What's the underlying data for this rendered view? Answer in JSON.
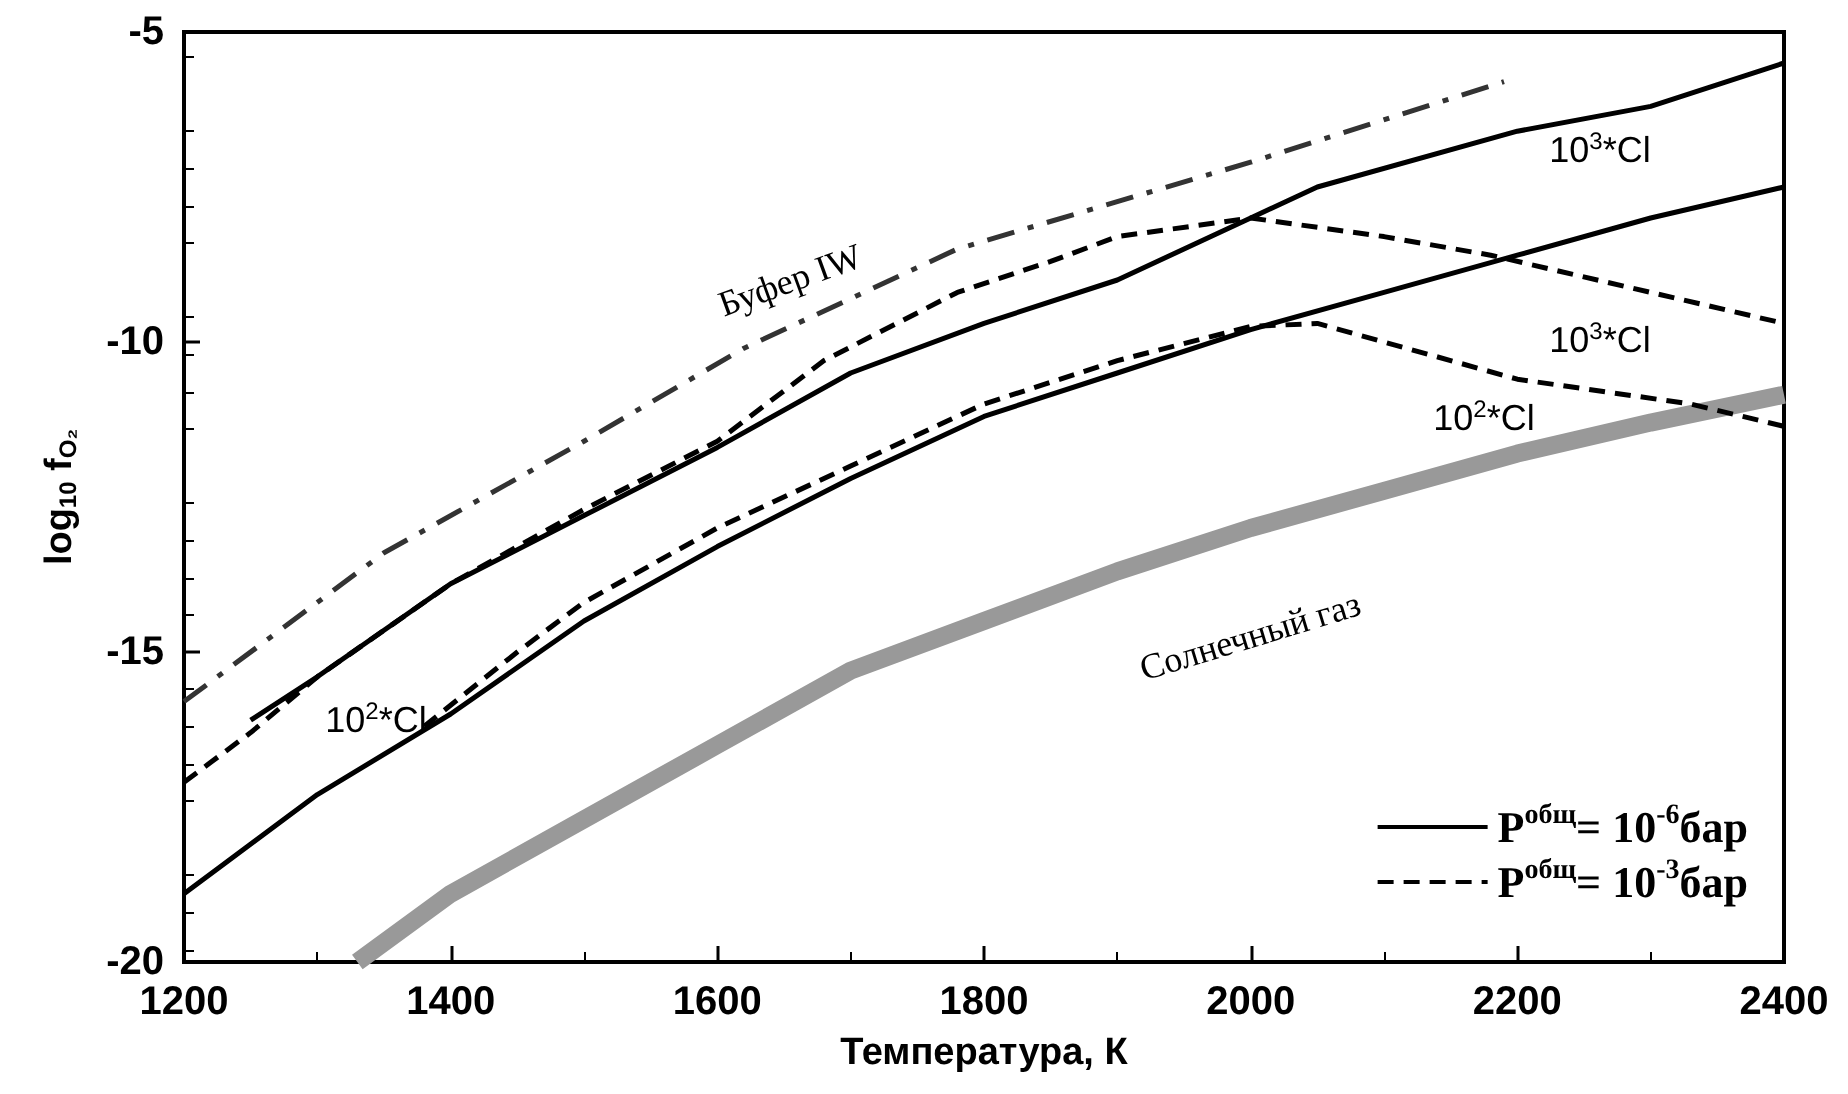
{
  "chart_data": {
    "type": "line",
    "xlabel": "Температура, К",
    "ylabel": "log$_{10}$ f$_{O₂}$",
    "xlim": [
      1200,
      2400
    ],
    "xticks": [
      1200,
      1400,
      1600,
      1800,
      2000,
      2200,
      2400
    ],
    "ylim": [
      -20,
      -5
    ],
    "yticks": [
      -20,
      -15,
      -10,
      -5
    ],
    "grid": false,
    "legend": "bottom right",
    "marker": "none",
    "series": [
      {
        "color": "#333333",
        "line_style": "dashdot",
        "x": [
          1200,
          1350,
          1500,
          1620,
          1780,
          2000,
          2190
        ],
        "values": [
          -15.8,
          -13.4,
          -11.6,
          -10.1,
          -8.5,
          -7.1,
          -5.8
        ]
      },
      {
        "name": "P$^{общ}$= 10$^{-6}$бар",
        "color": "#000000",
        "line_style": "solid",
        "x": [
          1250,
          1300,
          1400,
          1500,
          1600,
          1700,
          1800,
          1900,
          2000,
          2050,
          2200,
          2300,
          2400
        ],
        "values": [
          -16.1,
          -15.4,
          -13.9,
          -12.8,
          -11.7,
          -10.5,
          -9.7,
          -9.0,
          -8.0,
          -7.5,
          -6.6,
          -6.2,
          -5.5
        ]
      },
      {
        "color": "#000000",
        "line_style": "solid",
        "x": [
          1200,
          1300,
          1400,
          1500,
          1600,
          1700,
          1800,
          1900,
          2000,
          2100,
          2200,
          2300,
          2400
        ],
        "values": [
          -18.9,
          -17.3,
          -16.0,
          -14.5,
          -13.3,
          -12.2,
          -11.2,
          -10.5,
          -9.8,
          -9.2,
          -8.6,
          -8.0,
          -7.5
        ]
      },
      {
        "name": "P$^{общ}$= 10$^{-3}$бар",
        "color": "#000000",
        "line_style": "dashed",
        "x": [
          1200,
          1250,
          1300,
          1400,
          1500,
          1600,
          1680,
          1780,
          1850,
          1900,
          2000,
          2100,
          2180,
          2300,
          2400
        ],
        "values": [
          -17.1,
          -16.3,
          -15.4,
          -13.9,
          -12.7,
          -11.6,
          -10.3,
          -9.2,
          -8.7,
          -8.3,
          -8.0,
          -8.3,
          -8.6,
          -9.2,
          -9.7
        ]
      },
      {
        "color": "#000000",
        "line_style": "dashed",
        "x": [
          1380,
          1450,
          1500,
          1600,
          1700,
          1800,
          1900,
          2000,
          2050,
          2200,
          2330,
          2400
        ],
        "values": [
          -16.2,
          -15.0,
          -14.2,
          -13.0,
          -12.0,
          -11.0,
          -10.3,
          -9.75,
          -9.7,
          -10.6,
          -11.0,
          -11.36
        ]
      },
      {
        "color": "#999999",
        "line_style": "solid",
        "x": [
          1330,
          1400,
          1500,
          1600,
          1700,
          1800,
          1900,
          2000,
          2100,
          2200,
          2300,
          2400
        ],
        "values": [
          -20.0,
          -18.9,
          -17.7,
          -16.5,
          -15.3,
          -14.5,
          -13.7,
          -13.0,
          -12.4,
          -11.8,
          -11.3,
          -10.85
        ]
      }
    ],
    "annotations": [
      "Буфер IW",
      "Солнечный газ",
      "10$^{3}$*Cl",
      "10$^{3}$*Cl",
      "10$^{2}$*Cl",
      "10$^{2}$*Cl"
    ]
  }
}
